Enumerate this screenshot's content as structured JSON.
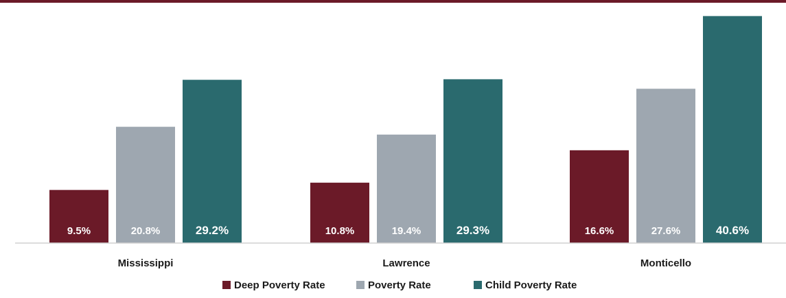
{
  "chart_data": {
    "type": "bar",
    "categories": [
      "Mississippi",
      "Lawrence",
      "Monticello"
    ],
    "series": [
      {
        "name": "Deep Poverty Rate",
        "values": [
          9.5,
          10.8,
          16.6
        ],
        "labels": [
          "9.5%",
          "10.8%",
          "16.6%"
        ],
        "color": "#6b1a28"
      },
      {
        "name": "Poverty Rate",
        "values": [
          20.8,
          19.4,
          27.6
        ],
        "labels": [
          "20.8%",
          "19.4%",
          "27.6%"
        ],
        "color": "#9ea7b0"
      },
      {
        "name": "Child Poverty Rate",
        "values": [
          29.2,
          29.3,
          40.6
        ],
        "labels": [
          "29.2%",
          "29.3%",
          "40.6%"
        ],
        "color": "#2a6a6e"
      }
    ],
    "ylim": [
      0,
      42
    ],
    "grid": false,
    "legend": "bottom",
    "title": "",
    "xlabel": "",
    "ylabel": ""
  },
  "colors": {
    "accent_rule": "#6b1a28",
    "axis": "#d0d0d0"
  }
}
